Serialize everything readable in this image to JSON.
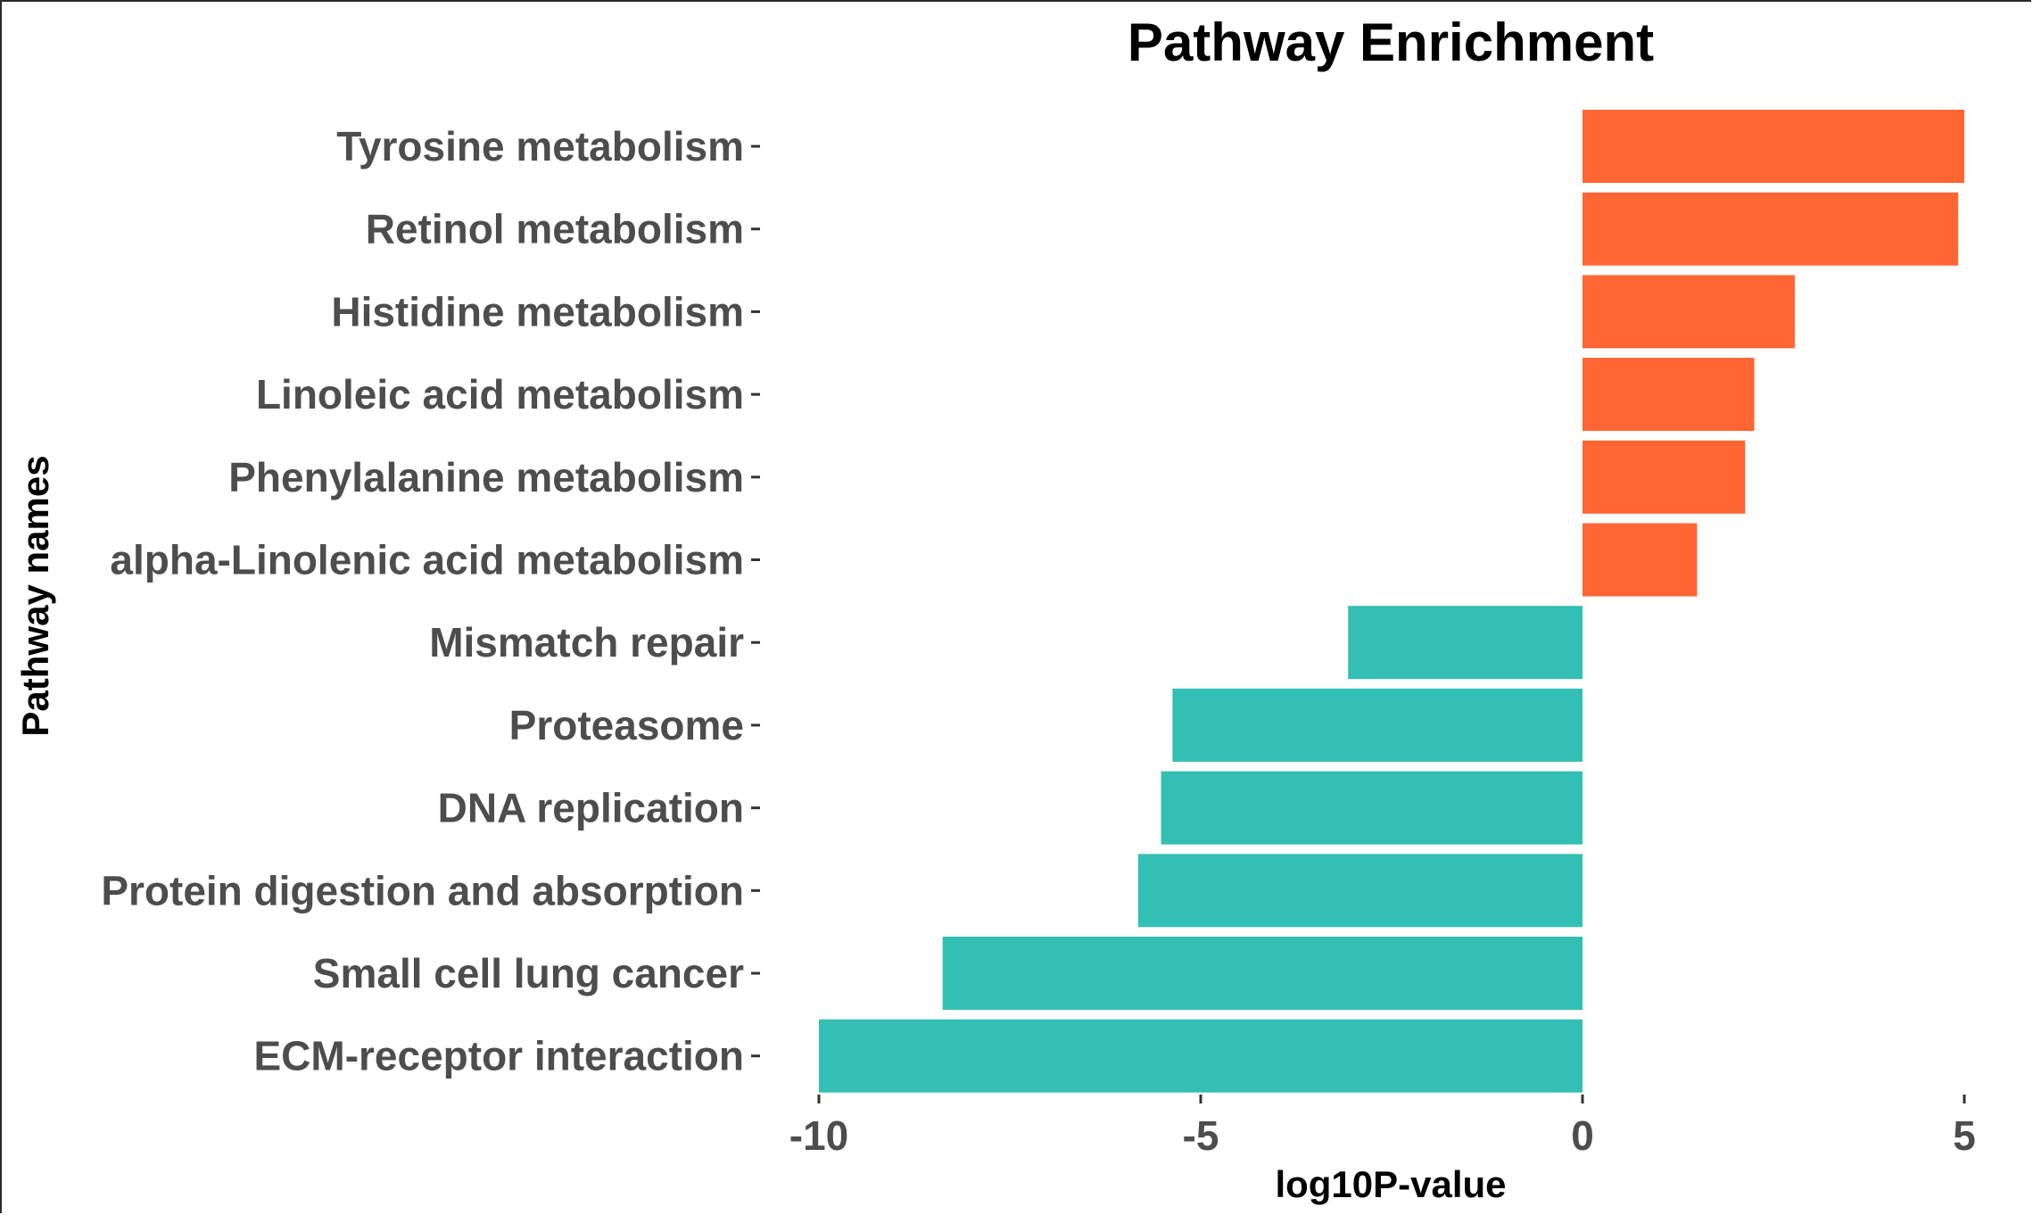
{
  "chart_data": {
    "type": "bar",
    "orientation": "horizontal",
    "title": "Pathway Enrichment",
    "xlabel": "log10P-value",
    "ylabel": "Pathway names",
    "xlim": [
      -10.5,
      5.5
    ],
    "xticks": [
      -10,
      -5,
      0,
      5
    ],
    "xtick_labels": [
      "-10",
      "-5",
      "0",
      "5"
    ],
    "grid": false,
    "legend": "none",
    "categories": [
      "Tyrosine metabolism",
      "Retinol metabolism",
      "Histidine metabolism",
      "Linoleic acid metabolism",
      "Phenylalanine metabolism",
      "alpha-Linolenic acid metabolism",
      "Mismatch repair",
      "Proteasome",
      "DNA replication",
      "Protein digestion and absorption",
      "Small cell lung cancer",
      "ECM-receptor interaction"
    ],
    "values": [
      5.0,
      4.92,
      2.78,
      2.25,
      2.13,
      1.5,
      -3.07,
      -5.37,
      -5.52,
      -5.82,
      -8.38,
      -10.0
    ],
    "colors": {
      "positive": "#ff6633",
      "negative": "#33bfb3"
    }
  }
}
